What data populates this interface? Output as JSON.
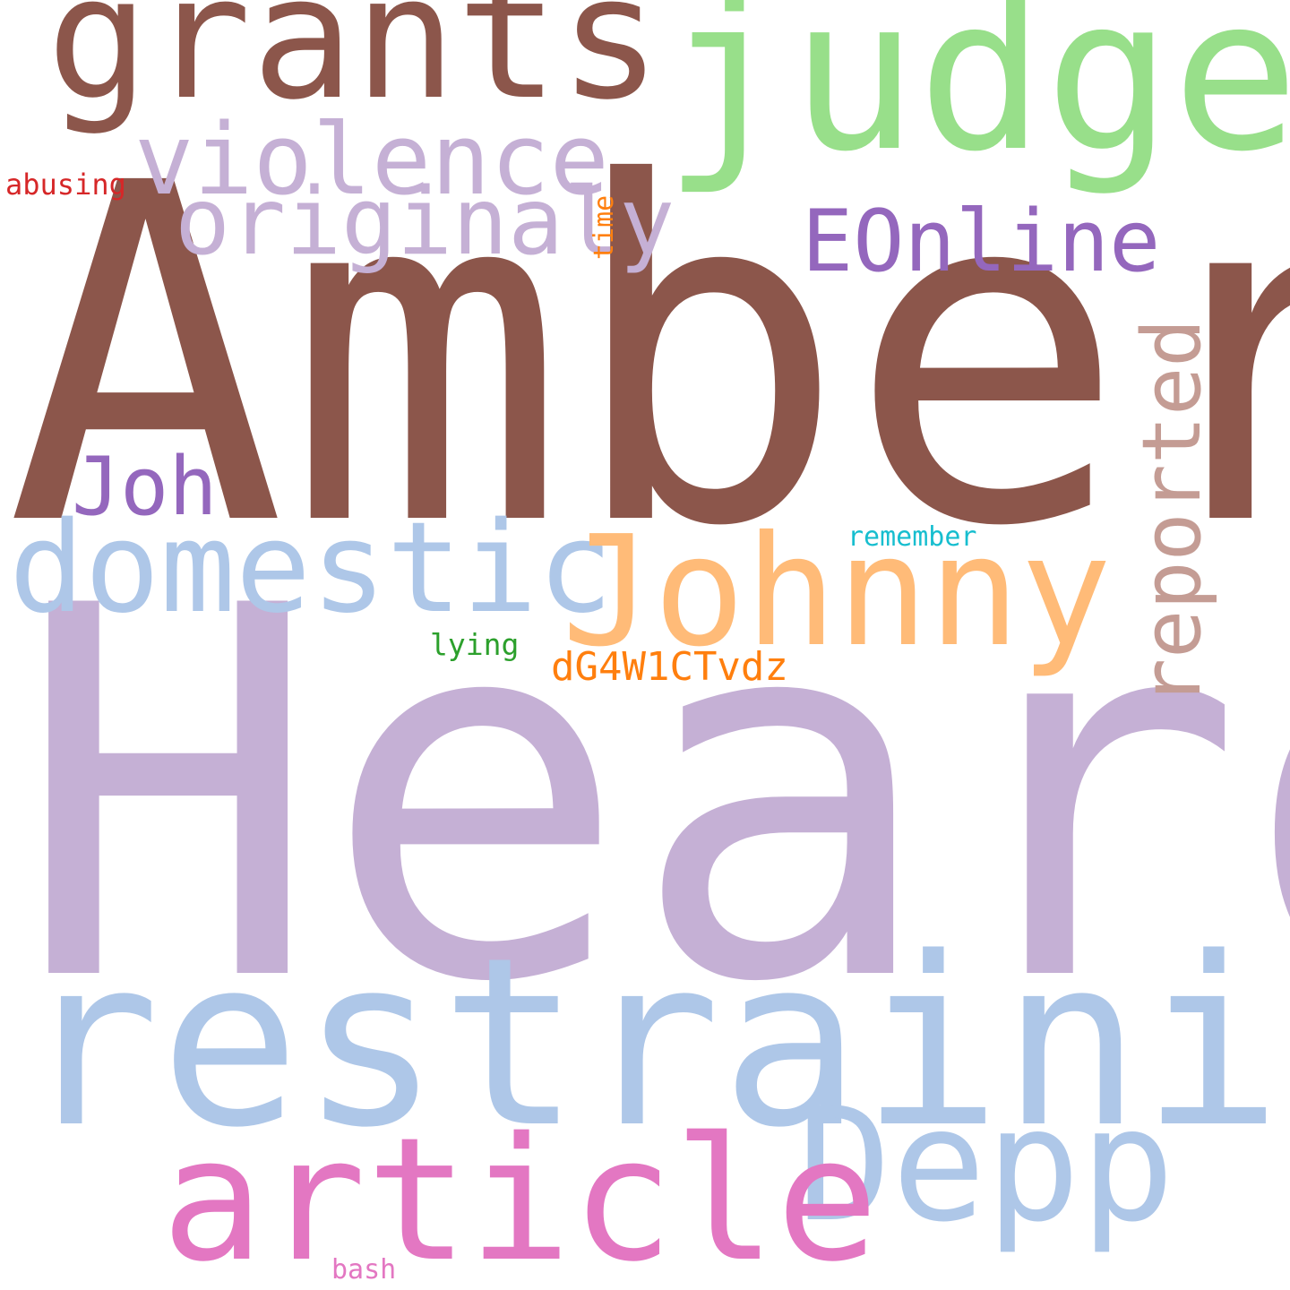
{
  "words": {
    "amber": {
      "text": "Amber",
      "color": "#8c564b"
    },
    "heard": {
      "text": "Heard",
      "color": "#c5b0d5"
    },
    "restraining": {
      "text": "restraining",
      "color": "#aec7e8"
    },
    "grants": {
      "text": "grants",
      "color": "#8c564b"
    },
    "judge": {
      "text": "judge",
      "color": "#98df8a"
    },
    "violence": {
      "text": "violence",
      "color": "#c5b0d5"
    },
    "originaly": {
      "text": "originaly",
      "color": "#c5b0d5"
    },
    "eonline": {
      "text": "EOnline",
      "color": "#9467bd"
    },
    "joh": {
      "text": "Joh",
      "color": "#9467bd"
    },
    "domestic": {
      "text": "domestic",
      "color": "#aec7e8"
    },
    "johnny": {
      "text": "Johnny",
      "color": "#ffbb78"
    },
    "reported": {
      "text": "reported",
      "color": "#c49c94"
    },
    "remember": {
      "text": "remember",
      "color": "#17becf"
    },
    "lying": {
      "text": "lying",
      "color": "#2ca02c"
    },
    "dg4w1ctvdz": {
      "text": "dG4W1CTvdz",
      "color": "#ff7f0e"
    },
    "article": {
      "text": "article",
      "color": "#e377c2"
    },
    "depp": {
      "text": "Depp",
      "color": "#aec7e8"
    },
    "abusing": {
      "text": "abusing",
      "color": "#d62728"
    },
    "time": {
      "text": "time",
      "color": "#ff7f0e"
    },
    "bash": {
      "text": "bash",
      "color": "#e377c2"
    }
  }
}
